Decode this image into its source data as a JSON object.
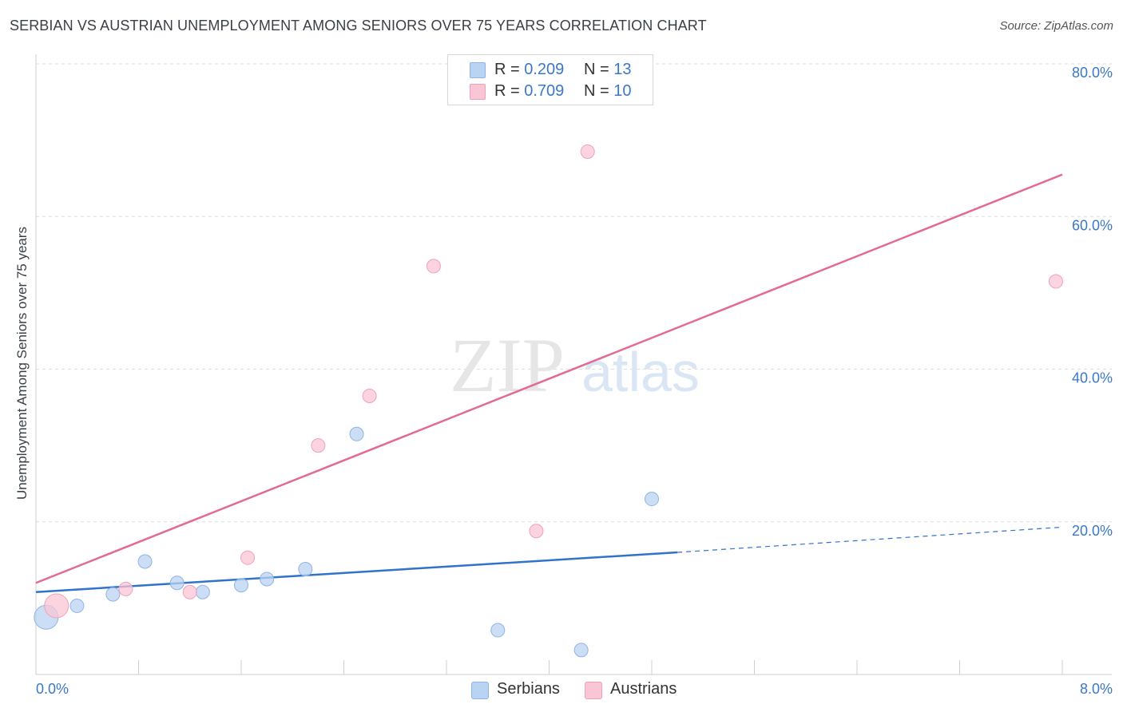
{
  "title": "SERBIAN VS AUSTRIAN UNEMPLOYMENT AMONG SENIORS OVER 75 YEARS CORRELATION CHART",
  "source": "Source: ZipAtlas.com",
  "watermark": {
    "zip": "ZIP",
    "atlas": "atlas"
  },
  "legend": {
    "serbians": {
      "r_label": "R = ",
      "r_value": "0.209",
      "n_label": "N = ",
      "n_value": "13"
    },
    "austrians": {
      "r_label": "R = ",
      "r_value": "0.709",
      "n_label": "N = ",
      "n_value": "10"
    }
  },
  "bottom_legend": {
    "serbians": "Serbians",
    "austrians": "Austrians"
  },
  "colors": {
    "serbians_fill": "#b9d3f3",
    "serbians_stroke": "#8fb4e3",
    "serbians_line": "#2f73cc",
    "austrians_fill": "#f9c6d6",
    "austrians_stroke": "#efa1bb",
    "austrians_line": "#e26a93",
    "axis_text": "#3a78c9",
    "grid": "#dcdcdc"
  },
  "chart_data": {
    "type": "scatter",
    "title": "SERBIAN VS AUSTRIAN UNEMPLOYMENT AMONG SENIORS OVER 75 YEARS CORRELATION CHART",
    "xlabel": "",
    "ylabel": "Unemployment Among Seniors over 75 years",
    "xlim": [
      0,
      8
    ],
    "ylim": [
      0,
      80
    ],
    "x_tick_labels": [
      "0.0%",
      "8.0%"
    ],
    "y_ticks": [
      20,
      40,
      60,
      80
    ],
    "y_tick_labels": [
      "20.0%",
      "40.0%",
      "60.0%",
      "80.0%"
    ],
    "grid": true,
    "legend_position": "top-center",
    "series": [
      {
        "name": "Serbians",
        "points": [
          {
            "x": 0.08,
            "y": 7.5,
            "size": "large"
          },
          {
            "x": 0.32,
            "y": 9.0
          },
          {
            "x": 0.6,
            "y": 10.5
          },
          {
            "x": 0.85,
            "y": 14.8
          },
          {
            "x": 1.1,
            "y": 12.0
          },
          {
            "x": 1.3,
            "y": 10.8
          },
          {
            "x": 1.6,
            "y": 11.7
          },
          {
            "x": 1.8,
            "y": 12.5
          },
          {
            "x": 2.1,
            "y": 13.8
          },
          {
            "x": 2.5,
            "y": 31.5
          },
          {
            "x": 3.6,
            "y": 5.8
          },
          {
            "x": 4.25,
            "y": 3.2
          },
          {
            "x": 4.8,
            "y": 23.0
          }
        ],
        "trend": {
          "x0": 0.0,
          "y0": 10.8,
          "x1": 5.0,
          "y1": 16.0,
          "dashed_to_x": 8.0,
          "dashed_to_y": 19.3
        }
      },
      {
        "name": "Austrians",
        "points": [
          {
            "x": 0.16,
            "y": 9.0,
            "size": "large"
          },
          {
            "x": 0.7,
            "y": 11.2
          },
          {
            "x": 1.2,
            "y": 10.8
          },
          {
            "x": 1.65,
            "y": 15.3
          },
          {
            "x": 2.2,
            "y": 30.0
          },
          {
            "x": 2.6,
            "y": 36.5
          },
          {
            "x": 3.1,
            "y": 53.5
          },
          {
            "x": 3.9,
            "y": 18.8
          },
          {
            "x": 4.3,
            "y": 68.5
          },
          {
            "x": 7.95,
            "y": 51.5
          }
        ],
        "trend": {
          "x0": 0.0,
          "y0": 12.0,
          "x1": 8.0,
          "y1": 65.5
        }
      }
    ]
  }
}
